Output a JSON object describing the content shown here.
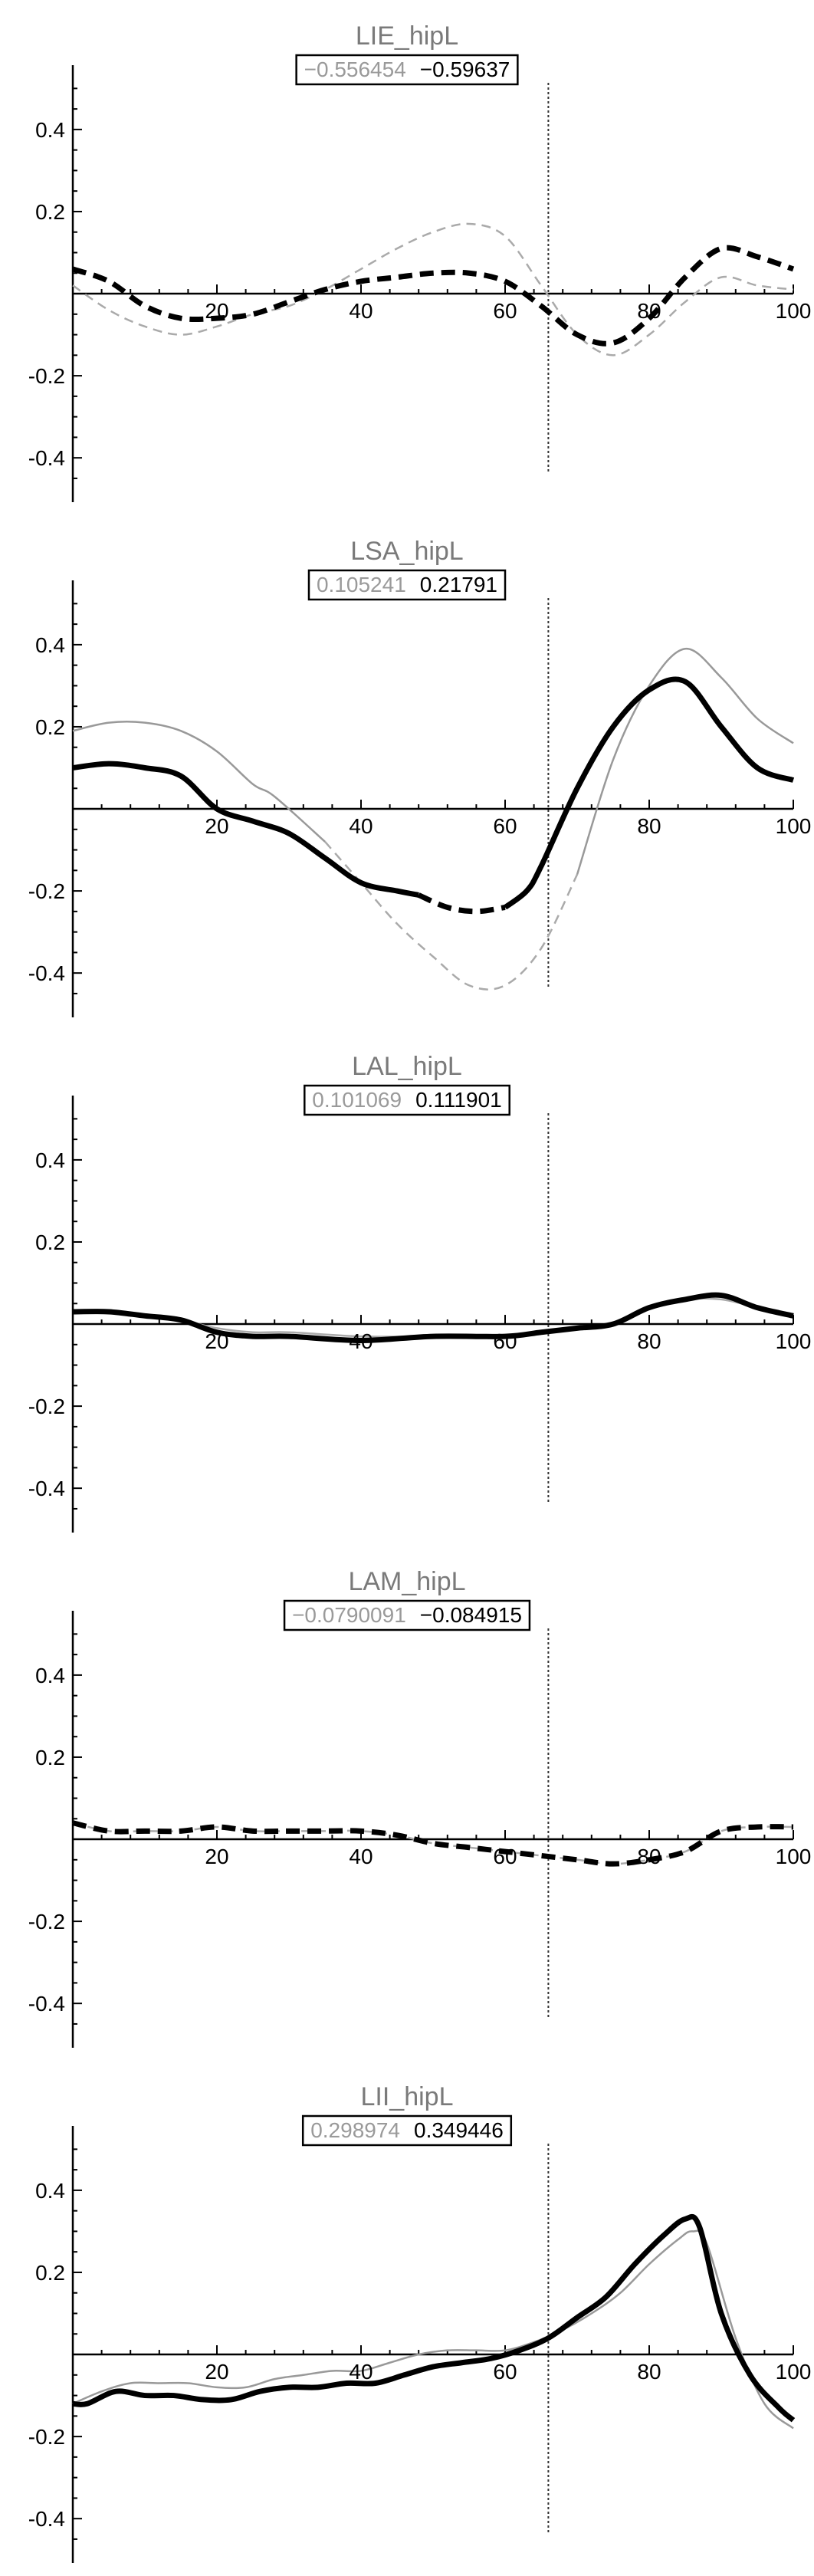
{
  "chart_data": [
    {
      "type": "line",
      "title": "LIE_hipL",
      "values_box": [
        "−0.556454",
        "−0.59637"
      ],
      "xlim": [
        0,
        100
      ],
      "ylim": [
        -0.48,
        0.51
      ],
      "xticks": [
        20,
        40,
        60,
        80,
        100
      ],
      "yticks": [
        -0.4,
        -0.2,
        0.2,
        0.4
      ],
      "xtick_labels": [
        "20",
        "40",
        "60",
        "80",
        "100"
      ],
      "ytick_labels": [
        "-0.4",
        "-0.2",
        "0.2",
        "0.4"
      ],
      "vline_x": 66,
      "series": [
        {
          "color": "#aaaaaa",
          "style": "dashed",
          "width": 2.5,
          "x": [
            0,
            5,
            10,
            15,
            20,
            25,
            30,
            35,
            40,
            45,
            50,
            55,
            60,
            65,
            70,
            75,
            80,
            85,
            90,
            95,
            100
          ],
          "y": [
            0.02,
            -0.04,
            -0.08,
            -0.1,
            -0.08,
            -0.05,
            -0.03,
            0.01,
            0.06,
            0.11,
            0.15,
            0.17,
            0.14,
            0.02,
            -0.1,
            -0.15,
            -0.1,
            -0.02,
            0.04,
            0.02,
            0.01
          ]
        },
        {
          "color": "#000000",
          "style": "dashed",
          "width": 7,
          "x": [
            0,
            5,
            10,
            15,
            20,
            25,
            30,
            35,
            40,
            45,
            50,
            55,
            60,
            65,
            70,
            75,
            80,
            85,
            90,
            95,
            100
          ],
          "y": [
            0.06,
            0.03,
            -0.03,
            -0.06,
            -0.06,
            -0.05,
            -0.02,
            0.01,
            0.03,
            0.04,
            0.05,
            0.05,
            0.03,
            -0.03,
            -0.1,
            -0.12,
            -0.06,
            0.04,
            0.11,
            0.09,
            0.06
          ]
        }
      ]
    },
    {
      "type": "line",
      "title": "LSA_hipL",
      "values_box": [
        "0.105241",
        "0.21791"
      ],
      "xlim": [
        0,
        100
      ],
      "ylim": [
        -0.48,
        0.51
      ],
      "xticks": [
        20,
        40,
        60,
        80,
        100
      ],
      "yticks": [
        -0.4,
        -0.2,
        0.2,
        0.4
      ],
      "xtick_labels": [
        "20",
        "40",
        "60",
        "80",
        "100"
      ],
      "ytick_labels": [
        "-0.4",
        "-0.2",
        "0.2",
        "0.4"
      ],
      "vline_x": 66,
      "series": [
        {
          "color": "#999999",
          "style": "solid",
          "width": 2.5,
          "x": [
            0,
            5,
            10,
            15,
            20,
            25,
            28,
            35
          ],
          "y": [
            0.19,
            0.21,
            0.21,
            0.19,
            0.14,
            0.06,
            0.03,
            -0.08
          ]
        },
        {
          "color": "#aaaaaa",
          "style": "dashed",
          "width": 2.5,
          "x": [
            35,
            40,
            45,
            50,
            55,
            60,
            65,
            70
          ],
          "y": [
            -0.08,
            -0.18,
            -0.28,
            -0.36,
            -0.43,
            -0.43,
            -0.34,
            -0.16
          ]
        },
        {
          "color": "#999999",
          "style": "solid",
          "width": 2.5,
          "x": [
            70,
            75,
            80,
            85,
            90,
            95,
            100
          ],
          "y": [
            -0.16,
            0.12,
            0.3,
            0.39,
            0.32,
            0.22,
            0.16
          ]
        },
        {
          "color": "#000000",
          "style": "solid",
          "width": 7,
          "x": [
            0,
            5,
            10,
            15,
            20,
            25,
            30,
            35,
            40,
            45,
            48
          ],
          "y": [
            0.1,
            0.11,
            0.1,
            0.08,
            0.0,
            -0.03,
            -0.06,
            -0.12,
            -0.18,
            -0.2,
            -0.21
          ]
        },
        {
          "color": "#000000",
          "style": "dashed",
          "width": 7,
          "x": [
            48,
            52,
            56,
            60
          ],
          "y": [
            -0.21,
            -0.24,
            -0.25,
            -0.24
          ]
        },
        {
          "color": "#000000",
          "style": "solid",
          "width": 7,
          "x": [
            60,
            63,
            65,
            70,
            75,
            80,
            85,
            90,
            95,
            100
          ],
          "y": [
            -0.24,
            -0.2,
            -0.14,
            0.05,
            0.2,
            0.29,
            0.31,
            0.2,
            0.1,
            0.07
          ]
        }
      ]
    },
    {
      "type": "line",
      "title": "LAL_hipL",
      "values_box": [
        "0.101069",
        "0.111901"
      ],
      "xlim": [
        0,
        100
      ],
      "ylim": [
        -0.48,
        0.51
      ],
      "xticks": [
        20,
        40,
        60,
        80,
        100
      ],
      "yticks": [
        -0.4,
        -0.2,
        0.2,
        0.4
      ],
      "xtick_labels": [
        "20",
        "40",
        "60",
        "80",
        "100"
      ],
      "ytick_labels": [
        "-0.4",
        "-0.2",
        "0.2",
        "0.4"
      ],
      "vline_x": 66,
      "series": [
        {
          "color": "#aaaaaa",
          "style": "solid",
          "width": 2.5,
          "x": [
            0,
            5,
            10,
            15,
            20,
            25,
            30,
            40,
            50,
            60,
            65,
            70,
            75,
            80,
            85,
            90,
            95,
            100
          ],
          "y": [
            0.03,
            0.03,
            0.02,
            0.01,
            -0.01,
            -0.02,
            -0.02,
            -0.03,
            -0.03,
            -0.03,
            -0.02,
            -0.01,
            0.0,
            0.04,
            0.06,
            0.06,
            0.04,
            0.02
          ]
        },
        {
          "color": "#000000",
          "style": "solid",
          "width": 7,
          "x": [
            0,
            5,
            10,
            15,
            20,
            25,
            30,
            40,
            50,
            60,
            65,
            70,
            75,
            80,
            85,
            90,
            95,
            100
          ],
          "y": [
            0.03,
            0.03,
            0.02,
            0.01,
            -0.02,
            -0.03,
            -0.03,
            -0.04,
            -0.03,
            -0.03,
            -0.02,
            -0.01,
            0.0,
            0.04,
            0.06,
            0.07,
            0.04,
            0.02
          ]
        }
      ]
    },
    {
      "type": "line",
      "title": "LAM_hipL",
      "values_box": [
        "−0.0790091",
        "−0.084915"
      ],
      "xlim": [
        0,
        100
      ],
      "ylim": [
        -0.48,
        0.51
      ],
      "xticks": [
        20,
        40,
        60,
        80,
        100
      ],
      "yticks": [
        -0.4,
        -0.2,
        0.2,
        0.4
      ],
      "xtick_labels": [
        "20",
        "40",
        "60",
        "80",
        "100"
      ],
      "ytick_labels": [
        "-0.4",
        "-0.2",
        "0.2",
        "0.4"
      ],
      "vline_x": 66,
      "series": [
        {
          "color": "#aaaaaa",
          "style": "dashed",
          "width": 2.5,
          "x": [
            0,
            5,
            10,
            15,
            20,
            25,
            30,
            35,
            40,
            45,
            50,
            55,
            60,
            65,
            70,
            75,
            80,
            85,
            90,
            95,
            100
          ],
          "y": [
            0.04,
            0.02,
            0.02,
            0.02,
            0.03,
            0.02,
            0.02,
            0.02,
            0.02,
            0.01,
            -0.01,
            -0.02,
            -0.03,
            -0.04,
            -0.05,
            -0.06,
            -0.05,
            -0.03,
            0.02,
            0.03,
            0.03
          ]
        },
        {
          "color": "#000000",
          "style": "dashed",
          "width": 7,
          "x": [
            0,
            5,
            10,
            15,
            20,
            25,
            30,
            35,
            40,
            45,
            50,
            55,
            60,
            65,
            70,
            75,
            80,
            85,
            90,
            95,
            100
          ],
          "y": [
            0.04,
            0.02,
            0.02,
            0.02,
            0.03,
            0.02,
            0.02,
            0.02,
            0.02,
            0.01,
            -0.01,
            -0.02,
            -0.03,
            -0.04,
            -0.05,
            -0.06,
            -0.05,
            -0.03,
            0.02,
            0.03,
            0.03
          ]
        }
      ]
    },
    {
      "type": "line",
      "title": "LII_hipL",
      "values_box": [
        "0.298974",
        "0.349446"
      ],
      "xlim": [
        0,
        100
      ],
      "ylim": [
        -0.48,
        0.51
      ],
      "xticks": [
        20,
        40,
        60,
        80,
        100
      ],
      "yticks": [
        -0.4,
        -0.2,
        0.2,
        0.4
      ],
      "xtick_labels": [
        "20",
        "40",
        "60",
        "80",
        "100"
      ],
      "ytick_labels": [
        "-0.4",
        "-0.2",
        "0.2",
        "0.4"
      ],
      "vline_x": 66,
      "series": [
        {
          "color": "#999999",
          "style": "solid",
          "width": 2.5,
          "x": [
            0,
            4,
            8,
            12,
            16,
            20,
            24,
            28,
            32,
            36,
            40,
            44,
            48,
            52,
            56,
            60,
            64,
            68,
            72,
            76,
            80,
            84,
            86,
            88,
            92,
            96,
            100
          ],
          "y": [
            -0.12,
            -0.09,
            -0.07,
            -0.07,
            -0.07,
            -0.08,
            -0.08,
            -0.06,
            -0.05,
            -0.04,
            -0.04,
            -0.02,
            0.0,
            0.01,
            0.01,
            0.01,
            0.03,
            0.06,
            0.1,
            0.15,
            0.22,
            0.28,
            0.3,
            0.27,
            0.04,
            -0.12,
            -0.18
          ]
        },
        {
          "color": "#000000",
          "style": "solid",
          "width": 7,
          "x": [
            0,
            2,
            6,
            10,
            14,
            18,
            22,
            26,
            30,
            34,
            38,
            42,
            46,
            50,
            54,
            58,
            62,
            66,
            70,
            74,
            78,
            82,
            85,
            87,
            90,
            94,
            98,
            100
          ],
          "y": [
            -0.12,
            -0.12,
            -0.09,
            -0.1,
            -0.1,
            -0.11,
            -0.11,
            -0.09,
            -0.08,
            -0.08,
            -0.07,
            -0.07,
            -0.05,
            -0.03,
            -0.02,
            -0.01,
            0.01,
            0.04,
            0.09,
            0.14,
            0.22,
            0.29,
            0.33,
            0.31,
            0.1,
            -0.05,
            -0.13,
            -0.16
          ]
        }
      ]
    }
  ]
}
